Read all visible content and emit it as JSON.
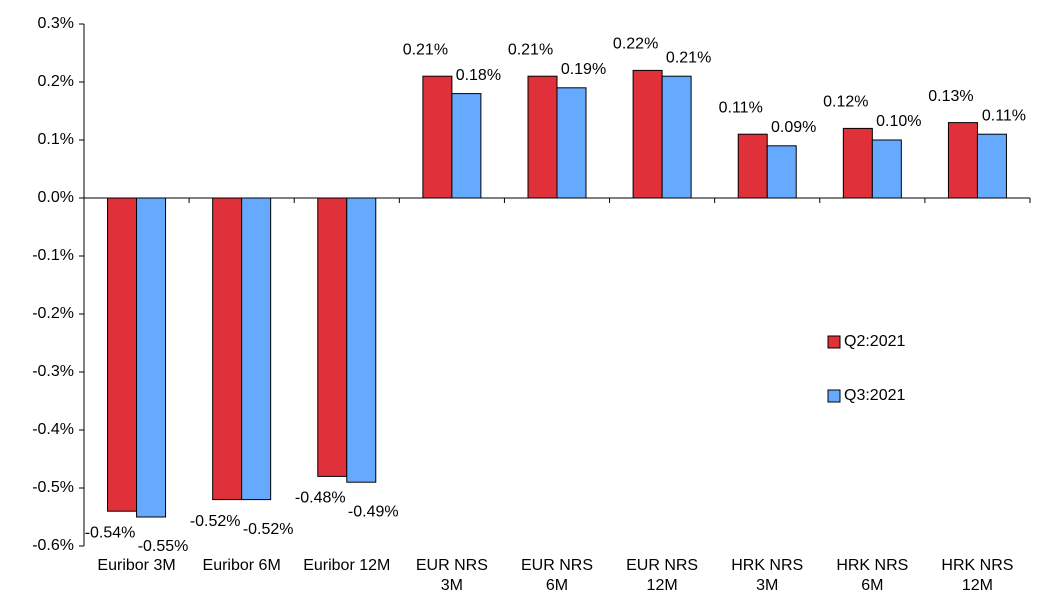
{
  "chart_data": {
    "type": "bar",
    "categories": [
      "Euribor 3M",
      "Euribor 6M",
      "Euribor 12M",
      "EUR NRS 3M",
      "EUR NRS 6M",
      "EUR NRS 12M",
      "HRK NRS 3M",
      "HRK NRS 6M",
      "HRK NRS 12M"
    ],
    "series": [
      {
        "name": "Q2:2021",
        "color": "#e0303a",
        "values": [
          -0.54,
          -0.52,
          -0.48,
          0.21,
          0.21,
          0.22,
          0.11,
          0.12,
          0.13
        ],
        "value_labels": [
          "-0.54%",
          "-0.52%",
          "-0.48%",
          "0.21%",
          "0.21%",
          "0.22%",
          "0.11%",
          "0.12%",
          "0.13%"
        ]
      },
      {
        "name": "Q3:2021",
        "color": "#66aaff",
        "values": [
          -0.55,
          -0.52,
          -0.49,
          0.18,
          0.19,
          0.21,
          0.09,
          0.1,
          0.11
        ],
        "value_labels": [
          "-0.55%",
          "-0.52%",
          "-0.49%",
          "0.18%",
          "0.19%",
          "0.21%",
          "0.09%",
          "0.10%",
          "0.11%"
        ]
      }
    ],
    "ylim": [
      -0.6,
      0.3
    ],
    "yticks": [
      {
        "value": -0.6,
        "label": "-0.6%"
      },
      {
        "value": -0.5,
        "label": "-0.5%"
      },
      {
        "value": -0.4,
        "label": "-0.4%"
      },
      {
        "value": -0.3,
        "label": "-0.3%"
      },
      {
        "value": -0.2,
        "label": "-0.2%"
      },
      {
        "value": -0.1,
        "label": "-0.1%"
      },
      {
        "value": 0,
        "label": "0.0%"
      },
      {
        "value": 0.1,
        "label": "0.1%"
      },
      {
        "value": 0.2,
        "label": "0.2%"
      },
      {
        "value": 0.3,
        "label": "0.3%"
      }
    ],
    "grid": false,
    "legend": "right"
  }
}
